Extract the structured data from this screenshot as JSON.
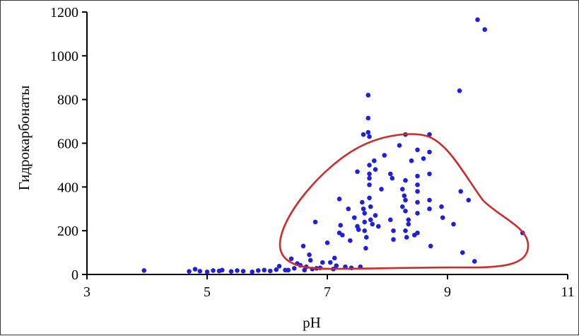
{
  "chart_data": {
    "type": "scatter",
    "xlabel": "pH",
    "ylabel": "Гидрокарбонаты",
    "xlim": [
      3,
      11
    ],
    "ylim": [
      0,
      1200
    ],
    "xticks": [
      3,
      5,
      7,
      9,
      11
    ],
    "yticks": [
      0,
      200,
      400,
      600,
      800,
      1000,
      1200
    ],
    "grid": false,
    "colors": {
      "points": "#1f1fe0",
      "outline": "#d12a2a",
      "axis": "#000000"
    },
    "series": [
      {
        "points": [
          [
            3.95,
            18
          ],
          [
            4.7,
            14
          ],
          [
            4.8,
            24
          ],
          [
            4.88,
            15
          ],
          [
            5.0,
            12
          ],
          [
            5.1,
            18
          ],
          [
            5.2,
            16
          ],
          [
            5.25,
            20
          ],
          [
            5.4,
            14
          ],
          [
            5.5,
            18
          ],
          [
            5.6,
            15
          ],
          [
            5.75,
            12
          ],
          [
            5.85,
            18
          ],
          [
            5.95,
            20
          ],
          [
            6.05,
            16
          ],
          [
            6.15,
            22
          ],
          [
            6.2,
            38
          ],
          [
            6.3,
            20
          ],
          [
            6.35,
            20
          ],
          [
            6.4,
            72
          ],
          [
            6.45,
            28
          ],
          [
            6.5,
            50
          ],
          [
            6.55,
            42
          ],
          [
            6.6,
            130
          ],
          [
            6.62,
            20
          ],
          [
            6.65,
            35
          ],
          [
            6.7,
            90
          ],
          [
            6.72,
            65
          ],
          [
            6.75,
            25
          ],
          [
            6.8,
            240
          ],
          [
            6.82,
            28
          ],
          [
            6.88,
            30
          ],
          [
            6.92,
            55
          ],
          [
            7.0,
            145
          ],
          [
            7.05,
            55
          ],
          [
            7.1,
            25
          ],
          [
            7.12,
            75
          ],
          [
            7.15,
            40
          ],
          [
            7.2,
            345
          ],
          [
            7.22,
            225
          ],
          [
            7.2,
            190
          ],
          [
            7.25,
            180
          ],
          [
            7.3,
            35
          ],
          [
            7.35,
            300
          ],
          [
            7.38,
            155
          ],
          [
            7.4,
            30
          ],
          [
            7.45,
            260
          ],
          [
            7.5,
            470
          ],
          [
            7.5,
            220
          ],
          [
            7.52,
            205
          ],
          [
            7.55,
            35
          ],
          [
            7.6,
            640
          ],
          [
            7.58,
            330
          ],
          [
            7.6,
            300
          ],
          [
            7.62,
            240
          ],
          [
            7.62,
            200
          ],
          [
            7.65,
            170
          ],
          [
            7.62,
            280
          ],
          [
            7.64,
            120
          ],
          [
            7.68,
            820
          ],
          [
            7.68,
            715
          ],
          [
            7.68,
            650
          ],
          [
            7.7,
            630
          ],
          [
            7.7,
            500
          ],
          [
            7.7,
            460
          ],
          [
            7.7,
            440
          ],
          [
            7.7,
            410
          ],
          [
            7.7,
            350
          ],
          [
            7.72,
            310
          ],
          [
            7.72,
            250
          ],
          [
            7.75,
            230
          ],
          [
            7.78,
            520
          ],
          [
            7.8,
            480
          ],
          [
            7.8,
            270
          ],
          [
            7.85,
            220
          ],
          [
            7.9,
            390
          ],
          [
            7.95,
            545
          ],
          [
            8.05,
            460
          ],
          [
            8.08,
            440
          ],
          [
            8.05,
            250
          ],
          [
            8.1,
            200
          ],
          [
            8.1,
            160
          ],
          [
            8.2,
            590
          ],
          [
            8.25,
            390
          ],
          [
            8.25,
            310
          ],
          [
            8.28,
            360
          ],
          [
            8.3,
            640
          ],
          [
            8.3,
            430
          ],
          [
            8.3,
            340
          ],
          [
            8.3,
            290
          ],
          [
            8.3,
            200
          ],
          [
            8.32,
            170
          ],
          [
            8.35,
            250
          ],
          [
            8.35,
            230
          ],
          [
            8.4,
            520
          ],
          [
            8.45,
            180
          ],
          [
            8.5,
            570
          ],
          [
            8.5,
            450
          ],
          [
            8.5,
            410
          ],
          [
            8.5,
            380
          ],
          [
            8.5,
            330
          ],
          [
            8.5,
            280
          ],
          [
            8.5,
            190
          ],
          [
            8.6,
            530
          ],
          [
            8.7,
            640
          ],
          [
            8.7,
            560
          ],
          [
            8.7,
            460
          ],
          [
            8.7,
            340
          ],
          [
            8.7,
            300
          ],
          [
            8.72,
            130
          ],
          [
            8.9,
            310
          ],
          [
            8.92,
            260
          ],
          [
            9.1,
            230
          ],
          [
            9.2,
            840
          ],
          [
            9.22,
            380
          ],
          [
            9.25,
            100
          ],
          [
            9.35,
            340
          ],
          [
            9.45,
            60
          ],
          [
            9.5,
            1165
          ],
          [
            9.62,
            1120
          ],
          [
            10.25,
            190
          ]
        ]
      }
    ]
  }
}
